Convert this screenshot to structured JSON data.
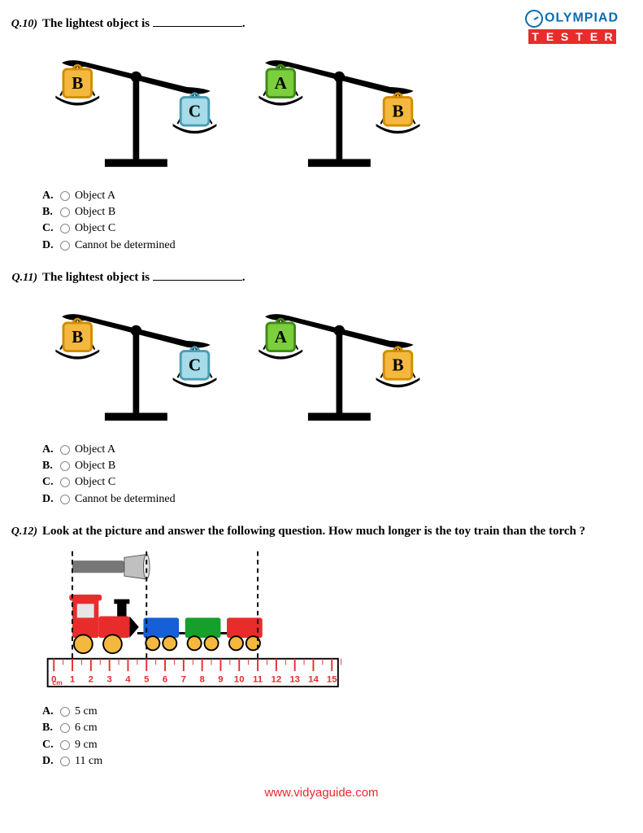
{
  "logo": {
    "top": "OLYMPIAD",
    "bottom": [
      "T",
      "E",
      "S",
      "T",
      "E",
      "R"
    ]
  },
  "questions": [
    {
      "num": "Q.10)",
      "text_before": "The lightest object is ",
      "text_after": ".",
      "scales": {
        "left": {
          "high": {
            "label": "B",
            "fill": "#f4b83f",
            "stroke": "#d28c00"
          },
          "low": {
            "label": "C",
            "fill": "#a6dbe8",
            "stroke": "#4a9db3"
          }
        },
        "right": {
          "high": {
            "label": "A",
            "fill": "#7bce3c",
            "stroke": "#3f8a17"
          },
          "low": {
            "label": "B",
            "fill": "#f4b83f",
            "stroke": "#d28c00"
          }
        }
      },
      "options": [
        {
          "letter": "A.",
          "text": "Object A"
        },
        {
          "letter": "B.",
          "text": "Object B"
        },
        {
          "letter": "C.",
          "text": "Object C"
        },
        {
          "letter": "D.",
          "text": "Cannot be determined"
        }
      ]
    },
    {
      "num": "Q.11)",
      "text_before": "The lightest object is ",
      "text_after": ".",
      "scales": {
        "left": {
          "high": {
            "label": "B",
            "fill": "#f4b83f",
            "stroke": "#d28c00"
          },
          "low": {
            "label": "C",
            "fill": "#a6dbe8",
            "stroke": "#4a9db3"
          }
        },
        "right": {
          "high": {
            "label": "A",
            "fill": "#7bce3c",
            "stroke": "#3f8a17"
          },
          "low": {
            "label": "B",
            "fill": "#f4b83f",
            "stroke": "#d28c00"
          }
        }
      },
      "options": [
        {
          "letter": "A.",
          "text": "Object A"
        },
        {
          "letter": "B.",
          "text": "Object B"
        },
        {
          "letter": "C.",
          "text": "Object C"
        },
        {
          "letter": "D.",
          "text": "Cannot be determined"
        }
      ]
    },
    {
      "num": "Q.12)",
      "text_full": "Look at the picture and answer the following question. How much longer is the toy train than the torch ?",
      "ruler": {
        "unit": "cm",
        "ticks": [
          "0",
          "1",
          "2",
          "3",
          "4",
          "5",
          "6",
          "7",
          "8",
          "9",
          "10",
          "11",
          "12",
          "13",
          "14",
          "15"
        ],
        "line_color": "#e82c2c",
        "bg": "#ffffff",
        "torch": {
          "start": 1,
          "end": 5,
          "body": "#777",
          "head": "#c0c0c0"
        },
        "train": {
          "start": 1,
          "end": 11,
          "engine": {
            "fill": "#e82c2c"
          },
          "cars": [
            {
              "fill": "#1560d6"
            },
            {
              "fill": "#15a02c"
            },
            {
              "fill": "#e82c2c"
            }
          ],
          "wheel": "#f4b83f",
          "window": "#e6e6e6"
        },
        "dash": "#000"
      },
      "options": [
        {
          "letter": "A.",
          "text": "5 cm"
        },
        {
          "letter": "B.",
          "text": "6 cm"
        },
        {
          "letter": "C.",
          "text": "9 cm"
        },
        {
          "letter": "D.",
          "text": "11 cm"
        }
      ]
    }
  ],
  "footer": "www.vidyaguide.com"
}
